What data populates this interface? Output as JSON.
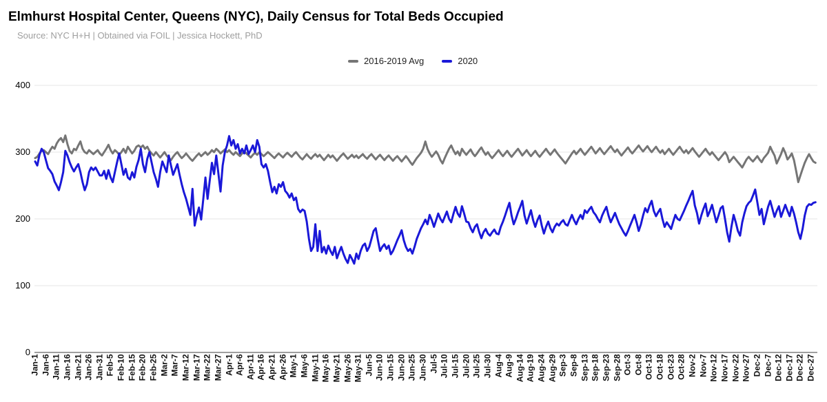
{
  "header": {
    "title": "Elmhurst Hospital Center, Queens (NYC), Daily Census for Total Beds Occupied",
    "source": "Source: NYC H+H | Obtained via FOIL | Jessica Hockett, PhD"
  },
  "chart_data": {
    "type": "line",
    "title": "Elmhurst Hospital Center, Queens (NYC), Daily Census for Total Beds Occupied",
    "subtitle": "Source: NYC H+H | Obtained via FOIL | Jessica Hockett, PhD",
    "legend_position": "top",
    "grid": true,
    "ylim": [
      0,
      400
    ],
    "y_ticks": [
      0,
      100,
      200,
      300,
      400
    ],
    "x_tick_interval_days": 5,
    "x_tick_labels": [
      "Jan-1",
      "Jan-6",
      "Jan-11",
      "Jan-16",
      "Jan-21",
      "Jan-26",
      "Jan-31",
      "Feb-5",
      "Feb-10",
      "Feb-15",
      "Feb-20",
      "Feb-25",
      "Mar-2",
      "Mar-7",
      "Mar-12",
      "Mar-17",
      "Mar-22",
      "Mar-27",
      "Apr-1",
      "Apr-6",
      "Apr-11",
      "Apr-16",
      "Apr-21",
      "Apr-26",
      "May-1",
      "May-6",
      "May-11",
      "May-16",
      "May-21",
      "May-26",
      "May-31",
      "Jun-5",
      "Jun-10",
      "Jun-15",
      "Jun-20",
      "Jun-25",
      "Jun-30",
      "Jul-5",
      "Jul-10",
      "Jul-15",
      "Jul-20",
      "Jul-25",
      "Jul-30",
      "Aug-4",
      "Aug-9",
      "Aug-14",
      "Aug-19",
      "Aug-24",
      "Aug-29",
      "Sep-3",
      "Sep-8",
      "Sep-13",
      "Sep-18",
      "Sep-23",
      "Sep-28",
      "Oct-3",
      "Oct-8",
      "Oct-13",
      "Oct-18",
      "Oct-23",
      "Oct-28",
      "Nov-2",
      "Nov-7",
      "Nov-12",
      "Nov-17",
      "Nov-22",
      "Nov-27",
      "Dec-2",
      "Dec-7",
      "Dec-12",
      "Dec-17",
      "Dec-22",
      "Dec-27"
    ],
    "colors": {
      "avg": "#757575",
      "y2020": "#1a18d8",
      "gridline": "#e6e6e6",
      "zero_axis": "#9e9e9e"
    },
    "series": [
      {
        "name": "2016-2019 Avg",
        "color": "#757575",
        "values": [
          291,
          293,
          298,
          302,
          303,
          300,
          297,
          303,
          308,
          305,
          313,
          318,
          321,
          315,
          325,
          312,
          302,
          298,
          305,
          303,
          310,
          316,
          305,
          300,
          298,
          303,
          300,
          297,
          300,
          303,
          298,
          295,
          300,
          305,
          311,
          303,
          298,
          303,
          300,
          296,
          300,
          305,
          299,
          308,
          303,
          298,
          302,
          308,
          310,
          307,
          310,
          305,
          308,
          302,
          298,
          295,
          300,
          296,
          292,
          296,
          300,
          295,
          291,
          288,
          293,
          297,
          300,
          295,
          291,
          294,
          298,
          294,
          290,
          287,
          291,
          295,
          298,
          294,
          297,
          300,
          296,
          299,
          303,
          300,
          305,
          302,
          298,
          301,
          304,
          300,
          303,
          299,
          296,
          300,
          297,
          294,
          298,
          301,
          298,
          295,
          292,
          296,
          299,
          296,
          300,
          297,
          294,
          297,
          300,
          297,
          294,
          291,
          295,
          298,
          295,
          292,
          296,
          299,
          296,
          293,
          297,
          300,
          296,
          292,
          289,
          293,
          297,
          293,
          290,
          294,
          297,
          293,
          296,
          292,
          288,
          292,
          296,
          292,
          295,
          291,
          287,
          291,
          295,
          298,
          294,
          290,
          293,
          296,
          292,
          295,
          291,
          294,
          297,
          293,
          290,
          294,
          297,
          293,
          289,
          293,
          296,
          292,
          288,
          292,
          295,
          291,
          287,
          291,
          294,
          290,
          286,
          290,
          294,
          290,
          285,
          281,
          286,
          291,
          295,
          299,
          305,
          316,
          305,
          298,
          293,
          297,
          301,
          296,
          288,
          283,
          291,
          298,
          305,
          310,
          303,
          297,
          301,
          295,
          305,
          300,
          296,
          300,
          304,
          298,
          294,
          298,
          303,
          307,
          301,
          296,
          300,
          295,
          291,
          295,
          299,
          303,
          298,
          294,
          298,
          302,
          297,
          293,
          297,
          301,
          305,
          300,
          295,
          299,
          303,
          298,
          294,
          298,
          302,
          297,
          293,
          297,
          301,
          305,
          300,
          296,
          300,
          304,
          299,
          295,
          291,
          287,
          283,
          288,
          293,
          298,
          302,
          297,
          301,
          305,
          300,
          296,
          300,
          304,
          308,
          303,
          298,
          302,
          306,
          301,
          297,
          301,
          305,
          309,
          304,
          300,
          304,
          299,
          295,
          299,
          303,
          307,
          302,
          298,
          302,
          306,
          310,
          305,
          301,
          305,
          309,
          304,
          300,
          304,
          308,
          303,
          299,
          303,
          297,
          301,
          305,
          300,
          296,
          300,
          304,
          308,
          303,
          299,
          303,
          298,
          302,
          306,
          301,
          297,
          293,
          297,
          301,
          305,
          300,
          296,
          300,
          296,
          292,
          288,
          292,
          296,
          300,
          295,
          285,
          289,
          293,
          289,
          285,
          281,
          277,
          283,
          289,
          293,
          289,
          286,
          290,
          294,
          289,
          285,
          291,
          295,
          299,
          308,
          301,
          295,
          283,
          290,
          297,
          306,
          299,
          289,
          293,
          298,
          288,
          272,
          255,
          265,
          275,
          284,
          291,
          297,
          291,
          286,
          284
        ]
      },
      {
        "name": "2020",
        "color": "#1a18d8",
        "values": [
          286,
          280,
          296,
          305,
          300,
          288,
          276,
          272,
          267,
          256,
          250,
          243,
          255,
          270,
          302,
          295,
          285,
          277,
          271,
          277,
          282,
          270,
          255,
          243,
          252,
          270,
          277,
          273,
          277,
          271,
          265,
          265,
          272,
          260,
          273,
          262,
          255,
          270,
          285,
          298,
          282,
          266,
          275,
          262,
          259,
          270,
          262,
          278,
          288,
          305,
          282,
          270,
          290,
          300,
          285,
          270,
          260,
          248,
          270,
          286,
          278,
          270,
          295,
          280,
          266,
          274,
          282,
          266,
          252,
          240,
          230,
          218,
          206,
          245,
          190,
          205,
          217,
          199,
          230,
          262,
          230,
          258,
          284,
          267,
          295,
          268,
          241,
          280,
          300,
          310,
          324,
          310,
          318,
          305,
          312,
          298,
          305,
          298,
          310,
          297,
          303,
          310,
          300,
          318,
          308,
          282,
          277,
          282,
          272,
          255,
          240,
          248,
          238,
          252,
          248,
          255,
          242,
          238,
          232,
          238,
          228,
          232,
          215,
          210,
          214,
          212,
          196,
          170,
          152,
          158,
          192,
          152,
          182,
          150,
          158,
          148,
          160,
          152,
          146,
          158,
          141,
          150,
          158,
          148,
          140,
          134,
          146,
          140,
          133,
          148,
          140,
          152,
          160,
          163,
          152,
          158,
          170,
          182,
          186,
          168,
          152,
          158,
          162,
          155,
          160,
          147,
          152,
          160,
          168,
          175,
          183,
          168,
          158,
          152,
          155,
          148,
          158,
          170,
          178,
          186,
          192,
          199,
          192,
          206,
          198,
          188,
          198,
          208,
          200,
          195,
          203,
          211,
          200,
          195,
          207,
          218,
          208,
          203,
          219,
          208,
          196,
          195,
          186,
          180,
          188,
          192,
          180,
          171,
          180,
          185,
          178,
          175,
          180,
          184,
          178,
          177,
          188,
          196,
          205,
          215,
          224,
          205,
          192,
          200,
          210,
          218,
          227,
          205,
          193,
          203,
          213,
          198,
          188,
          198,
          205,
          190,
          178,
          188,
          196,
          186,
          180,
          188,
          193,
          190,
          195,
          198,
          192,
          190,
          198,
          206,
          198,
          192,
          200,
          206,
          200,
          213,
          209,
          214,
          218,
          210,
          206,
          200,
          195,
          205,
          212,
          218,
          205,
          195,
          202,
          209,
          200,
          192,
          186,
          180,
          175,
          182,
          190,
          198,
          206,
          195,
          182,
          192,
          205,
          216,
          210,
          220,
          227,
          212,
          204,
          210,
          215,
          200,
          188,
          195,
          190,
          185,
          196,
          206,
          200,
          198,
          205,
          212,
          220,
          227,
          235,
          242,
          220,
          209,
          193,
          205,
          215,
          223,
          204,
          212,
          221,
          208,
          195,
          205,
          216,
          219,
          200,
          180,
          166,
          188,
          206,
          195,
          182,
          175,
          195,
          208,
          219,
          224,
          227,
          235,
          244,
          225,
          206,
          215,
          192,
          205,
          218,
          227,
          215,
          203,
          212,
          219,
          203,
          212,
          221,
          212,
          204,
          218,
          208,
          195,
          180,
          170,
          185,
          205,
          218,
          222,
          221,
          224,
          225
        ]
      }
    ]
  }
}
